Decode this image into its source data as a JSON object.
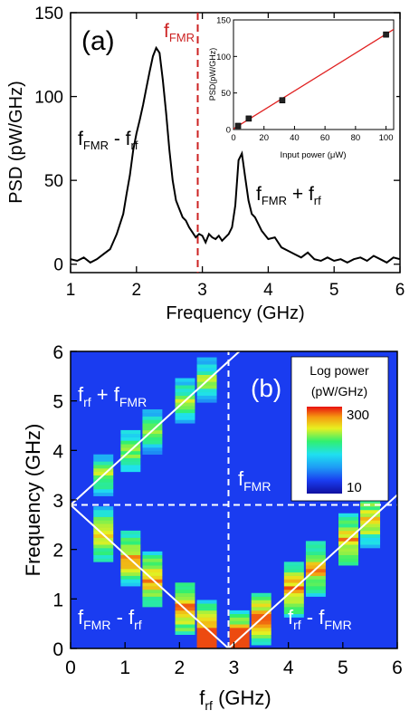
{
  "chart_data": [
    {
      "type": "line",
      "panel_label": "(a)",
      "xlabel": "Frequency (GHz)",
      "ylabel": "PSD (pW/GHz)",
      "xlim": [
        1,
        6
      ],
      "ylim": [
        -5,
        150
      ],
      "xticks": [
        1,
        2,
        3,
        4,
        5,
        6
      ],
      "yticks": [
        0,
        50,
        100,
        150
      ],
      "series": [
        {
          "color": "#000000",
          "x": [
            1.0,
            1.1,
            1.2,
            1.3,
            1.4,
            1.5,
            1.6,
            1.7,
            1.8,
            1.85,
            1.9,
            1.95,
            2.0,
            2.05,
            2.1,
            2.15,
            2.2,
            2.25,
            2.3,
            2.35,
            2.4,
            2.45,
            2.5,
            2.55,
            2.6,
            2.65,
            2.7,
            2.75,
            2.8,
            2.85,
            2.9,
            2.95,
            3.0,
            3.05,
            3.1,
            3.15,
            3.2,
            3.25,
            3.3,
            3.35,
            3.4,
            3.45,
            3.5,
            3.55,
            3.6,
            3.65,
            3.7,
            3.75,
            3.8,
            3.9,
            4.0,
            4.1,
            4.2,
            4.3,
            4.4,
            4.5,
            4.6,
            4.7,
            4.8,
            4.9,
            5.0,
            5.1,
            5.2,
            5.3,
            5.4,
            5.5,
            5.6,
            5.7,
            5.8,
            5.9,
            6.0
          ],
          "y": [
            3,
            2,
            4,
            1,
            3,
            6,
            9,
            18,
            30,
            42,
            53,
            68,
            78,
            86,
            95,
            105,
            115,
            124,
            129,
            126,
            110,
            90,
            68,
            50,
            38,
            33,
            28,
            26,
            22,
            19,
            16,
            18,
            17,
            13,
            18,
            16,
            15,
            17,
            14,
            16,
            18,
            22,
            35,
            62,
            66,
            52,
            38,
            30,
            28,
            20,
            15,
            16,
            10,
            8,
            6,
            4,
            7,
            3,
            2,
            4,
            2,
            3,
            1,
            3,
            4,
            2,
            5,
            3,
            1,
            4,
            3
          ]
        }
      ],
      "annotations": [
        {
          "text": "f",
          "sub": "FMR",
          "color": "#cc0000",
          "role": "fmr-marker",
          "x": 2.93
        },
        {
          "text": "f",
          "sub": "FMR",
          "text2": " - f",
          "sub2": "rf",
          "role": "left-peak"
        },
        {
          "text": "f",
          "sub": "FMR",
          "text2": " + f",
          "sub2": "rf",
          "role": "right-peak"
        }
      ]
    },
    {
      "type": "scatter",
      "role": "inset",
      "xlabel": "Input power (μW)",
      "ylabel": "PSD(pW/GHz)",
      "xlim": [
        0,
        105
      ],
      "ylim": [
        0,
        150
      ],
      "xticks": [
        0,
        20,
        40,
        60,
        80,
        100
      ],
      "yticks": [
        0,
        50,
        100,
        150
      ],
      "points": [
        {
          "x": 3,
          "y": 5
        },
        {
          "x": 10,
          "y": 15
        },
        {
          "x": 32,
          "y": 40
        },
        {
          "x": 100,
          "y": 130
        }
      ],
      "fit_line": {
        "x": [
          0,
          105
        ],
        "y": [
          1,
          137
        ],
        "color": "#e02020"
      }
    },
    {
      "type": "heatmap",
      "panel_label": "(b)",
      "xlabel": "f",
      "xlabel_sub": "rf",
      "xlabel_suffix": " (GHz)",
      "ylabel": "Frequency (GHz)",
      "xlim": [
        0,
        6
      ],
      "ylim": [
        0,
        6
      ],
      "xticks": [
        0,
        1,
        2,
        3,
        4,
        5,
        6
      ],
      "yticks": [
        0,
        1,
        2,
        3,
        4,
        5,
        6
      ],
      "colorbar": {
        "title": "Log power",
        "unit": "(pW/GHz)",
        "max_label": "300",
        "min_label": "10"
      },
      "fmr_frequency": 2.9,
      "columns_rf": [
        0.6,
        1.1,
        1.5,
        2.1,
        2.5,
        3.1,
        3.5,
        4.1,
        4.5,
        5.1,
        5.5
      ],
      "column_width": 0.36,
      "labels": [
        {
          "text": "f",
          "sub": "rf",
          "text2": " + f",
          "sub2": "FMR"
        },
        {
          "text": "f",
          "sub": "FMR"
        },
        {
          "text": "f",
          "sub": "FMR",
          "text2": " - f",
          "sub2": "rf"
        },
        {
          "text": "f",
          "sub": "rf",
          "text2": " - f",
          "sub2": "FMR"
        }
      ]
    }
  ]
}
